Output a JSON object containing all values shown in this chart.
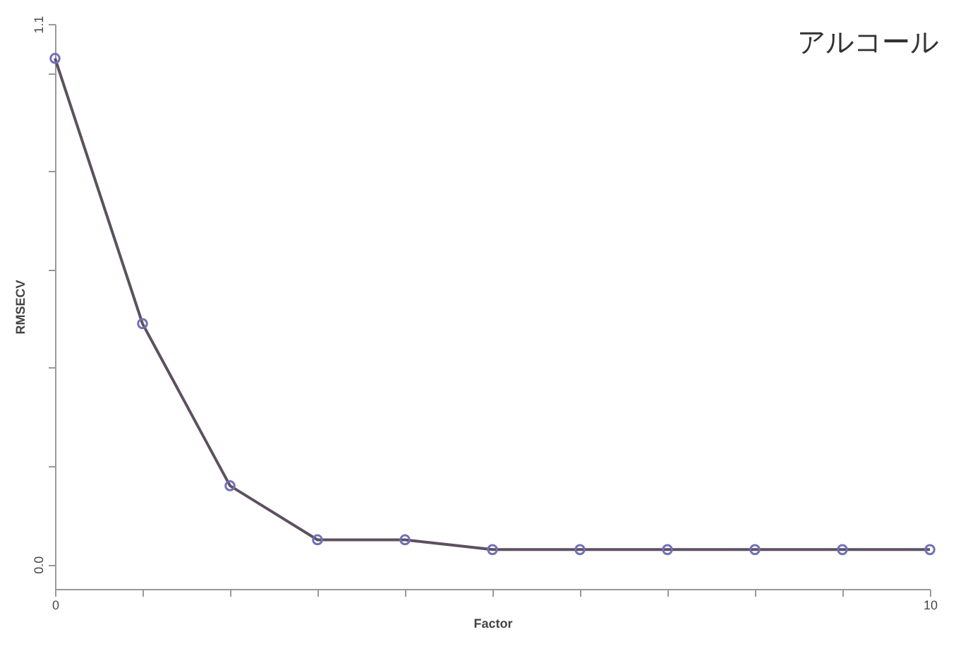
{
  "chart_data": {
    "type": "line",
    "title": "アルコール",
    "xlabel": "Factor",
    "ylabel": "RMSECV",
    "x": [
      0,
      1,
      2,
      3,
      4,
      5,
      6,
      7,
      8,
      9,
      10
    ],
    "series": [
      {
        "color": "#5e5060",
        "values": [
          1.03,
          0.49,
          0.16,
          0.05,
          0.05,
          0.03,
          0.03,
          0.03,
          0.03,
          0.03,
          0.03
        ]
      }
    ],
    "xlim": [
      0,
      10
    ],
    "xticks": [
      0,
      {
        "value": 1,
        "label": null
      },
      {
        "value": 2,
        "label": null
      },
      {
        "value": 3,
        "label": null
      },
      {
        "value": 4,
        "label": null
      },
      {
        "value": 5,
        "label": null
      },
      {
        "value": 6,
        "label": null
      },
      {
        "value": 7,
        "label": null
      },
      {
        "value": 8,
        "label": null
      },
      {
        "value": 9,
        "label": null
      },
      10
    ],
    "ylim": [
      -0.05,
      1.1
    ],
    "yticks": [
      {
        "value": 0,
        "label": "0.0"
      },
      {
        "value": 0.2,
        "label": null
      },
      {
        "value": 0.4,
        "label": null
      },
      {
        "value": 0.6,
        "label": null
      },
      {
        "value": 0.8,
        "label": null
      },
      {
        "value": 1,
        "label": null
      },
      {
        "value": 1.1,
        "label": "1.1"
      }
    ],
    "marker": "circle",
    "grid": false,
    "legend": false
  }
}
